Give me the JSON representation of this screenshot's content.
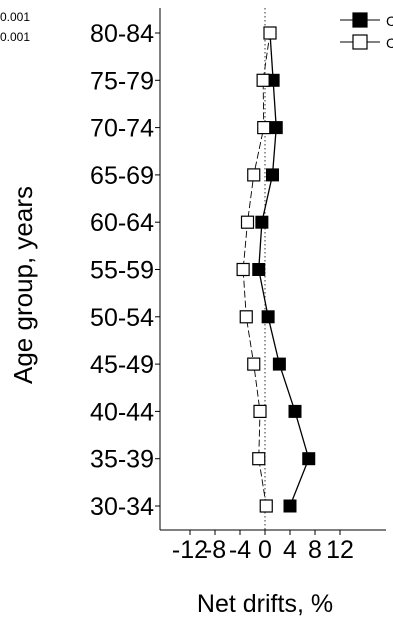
{
  "chart_data": {
    "type": "line",
    "ylabel": "Age group, years",
    "xlabel": "Net drifts, %",
    "xlim": [
      -12,
      12
    ],
    "x_ticks": [
      -12,
      -8,
      -4,
      0,
      4,
      8,
      12
    ],
    "x_tick_labels": [
      "-12",
      "-8",
      "-4",
      "0",
      "4",
      "8",
      "12"
    ],
    "categories": [
      "30-34",
      "35-39",
      "40-44",
      "45-49",
      "50-54",
      "55-59",
      "60-64",
      "65-69",
      "70-74",
      "75-79",
      "80-84"
    ],
    "reference_line_x": 0,
    "series": [
      {
        "name": "",
        "marker": "filled-square",
        "line_style": "solid",
        "values": [
          4.0,
          7.0,
          4.8,
          2.3,
          0.5,
          -1.0,
          -0.5,
          1.2,
          1.8,
          1.3,
          0.8
        ]
      },
      {
        "name": "",
        "marker": "open-square",
        "line_style": "dashed",
        "values": [
          0.2,
          -1.0,
          -0.8,
          -1.8,
          -3.0,
          -3.5,
          -2.8,
          -1.8,
          -0.2,
          -0.3,
          0.8
        ]
      }
    ],
    "legend_position": "top-right",
    "legend_visible_text": [
      "C",
      "C"
    ],
    "side_annotations": [
      "0.001",
      "0.001"
    ],
    "colors": {
      "axis": "#000000",
      "filled_marker": "#000000",
      "open_marker_fill": "#ffffff"
    }
  }
}
